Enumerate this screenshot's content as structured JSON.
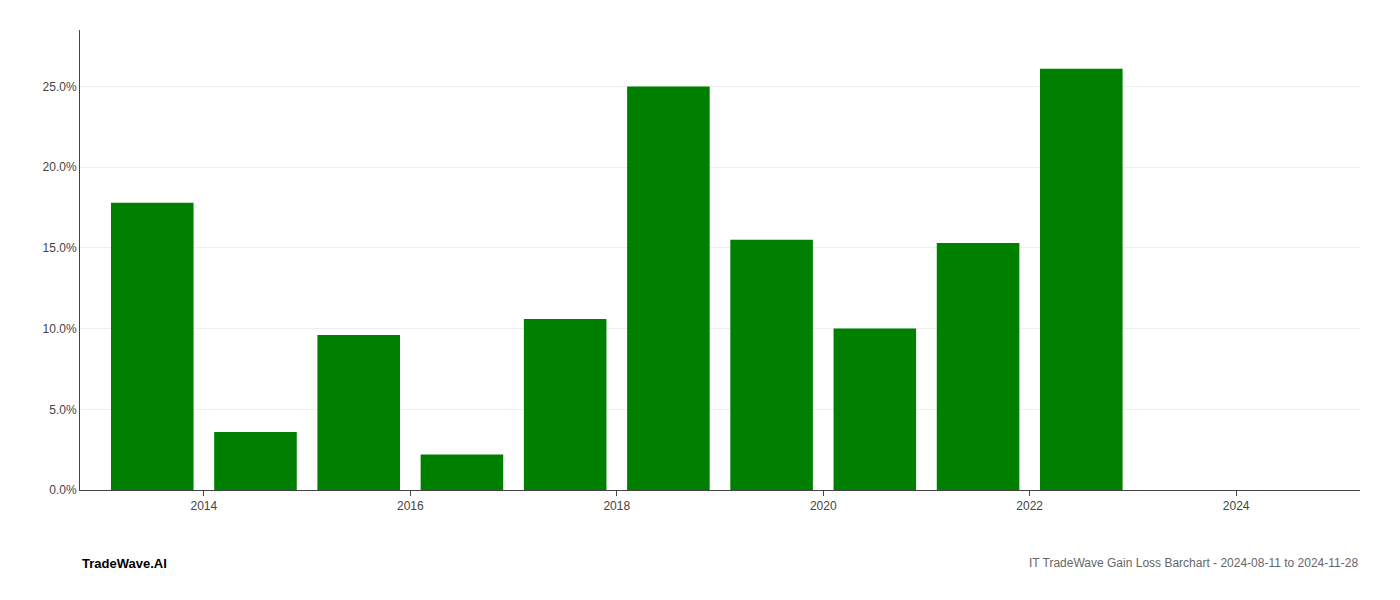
{
  "chart_data": {
    "type": "bar",
    "title": "IT TradeWave Gain Loss Barchart - 2024-08-11 to 2024-11-28",
    "annotations": [
      "TradeWave.AI"
    ],
    "x": [
      2013.5,
      2014.5,
      2015.5,
      2016.5,
      2017.5,
      2018.5,
      2019.5,
      2020.5,
      2021.5,
      2022.5
    ],
    "values": [
      0.178,
      0.036,
      0.096,
      0.022,
      0.106,
      0.25,
      0.155,
      0.1,
      0.153,
      0.261
    ],
    "color": "#008000",
    "xlim": [
      2012.8,
      2025.2
    ],
    "xticks": [
      2014,
      2016,
      2018,
      2020,
      2022,
      2024
    ],
    "ylim": [
      0,
      0.285
    ],
    "yticks": [
      {
        "value": 0.0,
        "label": "0.0%"
      },
      {
        "value": 0.05,
        "label": "5.0%"
      },
      {
        "value": 0.1,
        "label": "10.0%"
      },
      {
        "value": 0.15,
        "label": "15.0%"
      },
      {
        "value": 0.2,
        "label": "20.0%"
      },
      {
        "value": 0.25,
        "label": "25.0%"
      }
    ],
    "grid": true
  }
}
